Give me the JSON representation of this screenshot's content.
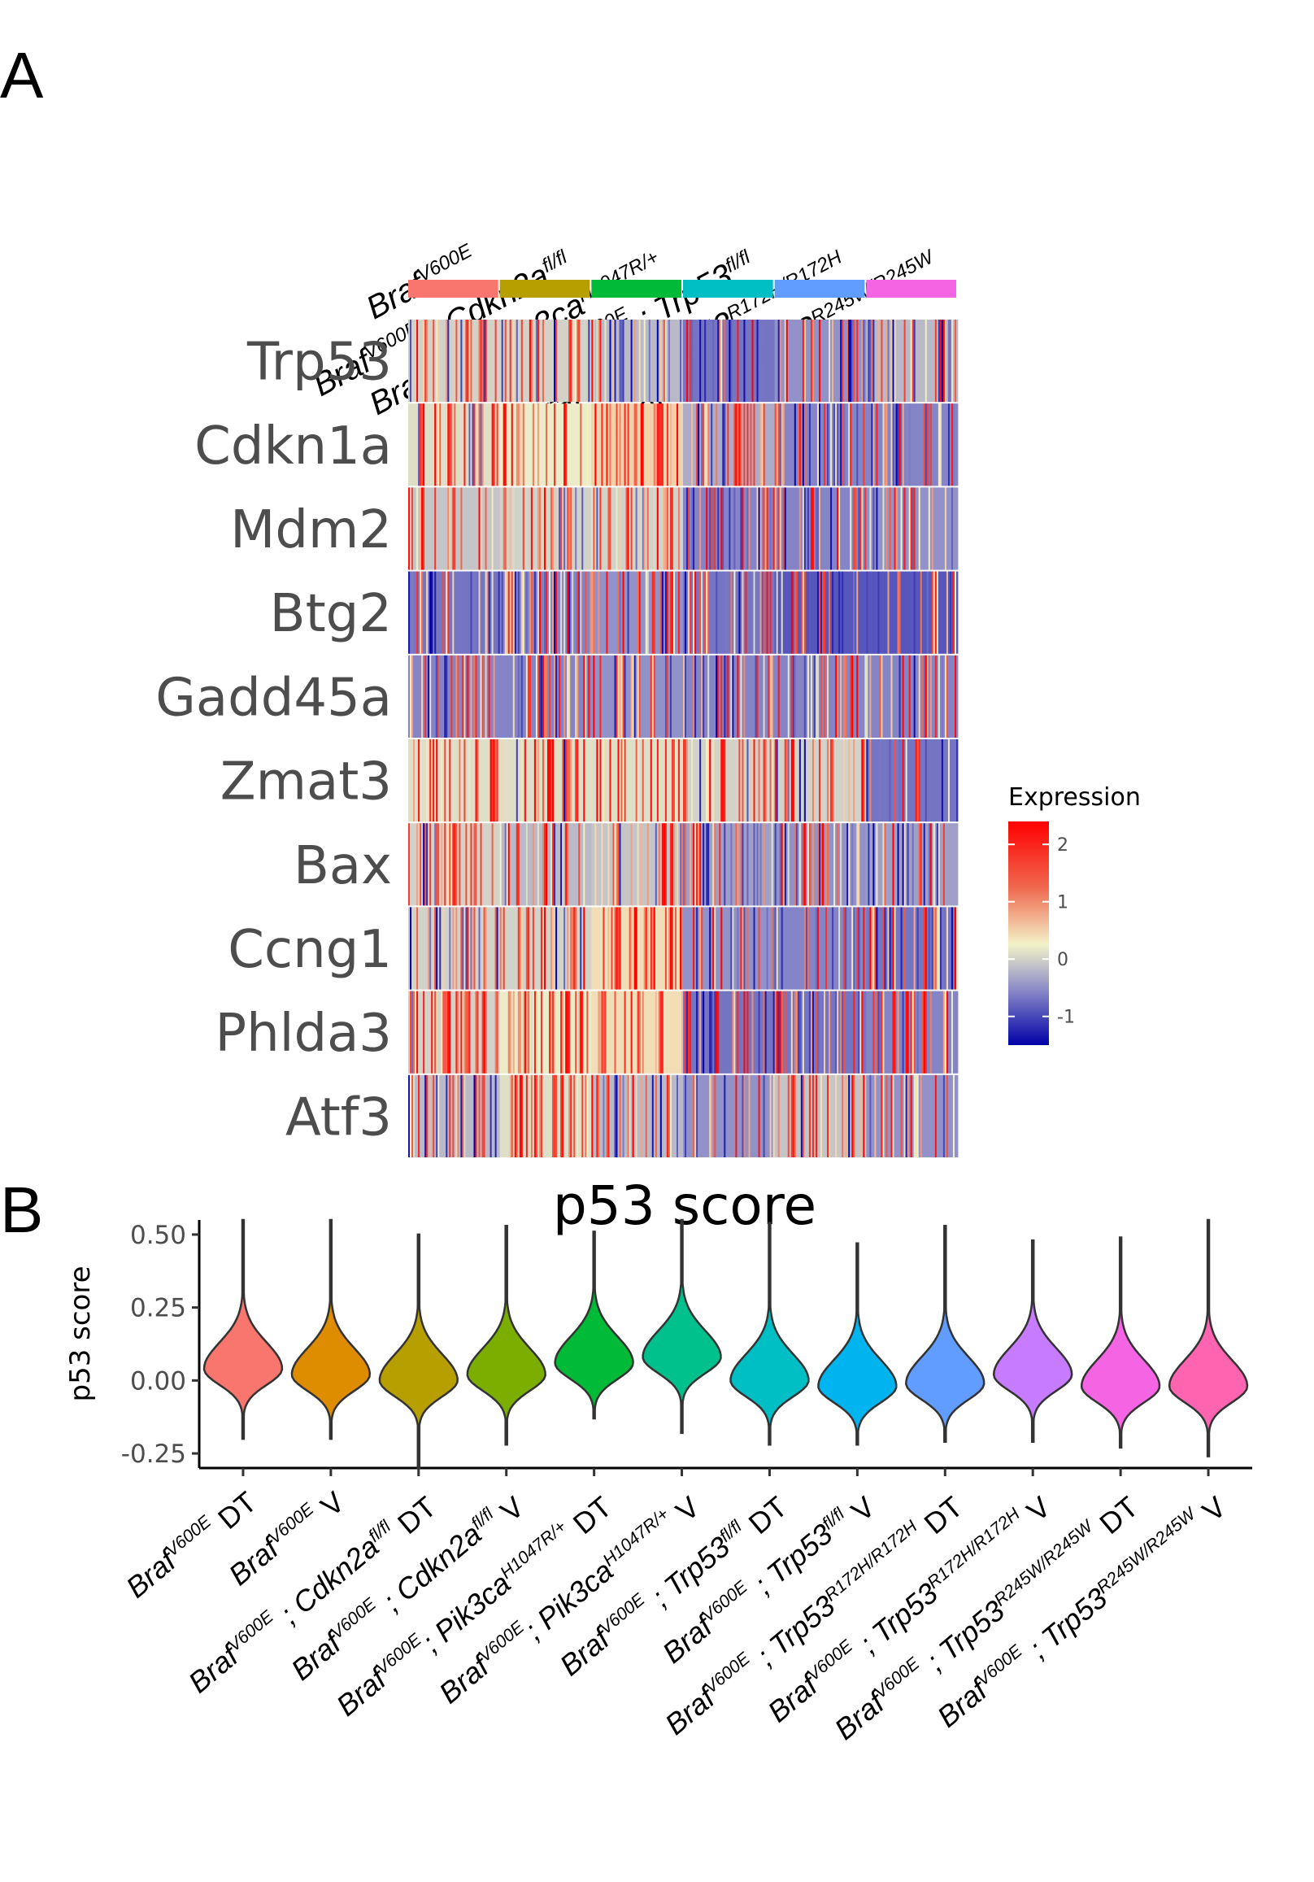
{
  "panels": {
    "a": "A",
    "b": "B"
  },
  "chart_data": [
    {
      "type": "heatmap",
      "title": "",
      "genes": [
        "Trp53",
        "Cdkn1a",
        "Mdm2",
        "Btg2",
        "Gadd45a",
        "Zmat3",
        "Bax",
        "Ccng1",
        "Phlda3",
        "Atf3"
      ],
      "groups": [
        {
          "name": "Braf V600E",
          "color": "#F8766D"
        },
        {
          "name": "Braf V600E ; Cdkn2a fl/fl",
          "color": "#B79F00"
        },
        {
          "name": "Braf V600E; Pik3ca H1047R/+",
          "color": "#00BA38"
        },
        {
          "name": "Braf V600E ; Trp53 fl/fl",
          "color": "#00BFC4"
        },
        {
          "name": "Braf V600E ; Trp53 R172H/R172H",
          "color": "#619CFF"
        },
        {
          "name": "Braf V600E ; Trp53 R245W/R245W",
          "color": "#F564E3"
        }
      ],
      "group_labels": [
        {
          "base": "Braf",
          "sup1": "V600E",
          "mid": "",
          "sup2": ""
        },
        {
          "base": "Braf",
          "sup1": "V600E",
          "mid": " ; Cdkn2a",
          "sup2": "fl/fl"
        },
        {
          "base": "Braf",
          "sup1": "V600E",
          "mid": "; Pik3ca",
          "sup2": "H1047R/+"
        },
        {
          "base": "Braf",
          "sup1": "V600E",
          "mid": " ; Trp53",
          "sup2": "fl/fl"
        },
        {
          "base": "Braf",
          "sup1": "V600E",
          "mid": " ; Trp53",
          "sup2": "R172H/R172H"
        },
        {
          "base": "Braf",
          "sup1": "V600E",
          "mid": " ; Trp53",
          "sup2": "R245W/R245W"
        }
      ],
      "approx_mean_z": [
        [
          0.3,
          0.3,
          0.1,
          -0.4,
          -0.2,
          0.1
        ],
        [
          0.4,
          0.5,
          0.8,
          0.0,
          -0.3,
          -0.3
        ],
        [
          0.2,
          0.3,
          0.3,
          -0.3,
          -0.3,
          -0.2
        ],
        [
          -0.4,
          -0.3,
          -0.2,
          -0.4,
          -0.6,
          -0.6
        ],
        [
          -0.3,
          -0.3,
          -0.2,
          -0.3,
          -0.3,
          -0.3
        ],
        [
          0.4,
          0.4,
          0.4,
          0.3,
          0.3,
          -0.4
        ],
        [
          0.3,
          0.1,
          0.2,
          -0.1,
          -0.2,
          -0.1
        ],
        [
          0.3,
          0.3,
          0.7,
          -0.2,
          -0.3,
          -0.4
        ],
        [
          0.3,
          0.5,
          0.7,
          -0.4,
          -0.4,
          -0.3
        ],
        [
          0.1,
          0.4,
          0.1,
          -0.2,
          0.2,
          -0.2
        ]
      ],
      "legend": {
        "title": "Expression",
        "ticks": [
          "2",
          "1",
          "0",
          "-1"
        ],
        "range": [
          -1.5,
          2.4
        ],
        "colors": [
          "#0000A8",
          "#8C8CC8",
          "#F2F2C8",
          "#F06A50",
          "#FF0000"
        ],
        "placement": "right"
      }
    },
    {
      "type": "violin",
      "title": "p53 score",
      "ylabel": "p53 score",
      "ylim": [
        -0.3,
        0.55
      ],
      "yticks": [
        "0.50",
        "0.25",
        "0.00",
        "-0.25"
      ],
      "ytick_values": [
        0.5,
        0.25,
        0.0,
        -0.25
      ],
      "categories": [
        {
          "base": "Braf",
          "sup1": "V600E",
          "mid": "",
          "sup2": "",
          "suffix": " DT"
        },
        {
          "base": "Braf",
          "sup1": "V600E",
          "mid": "",
          "sup2": "",
          "suffix": " V"
        },
        {
          "base": "Braf",
          "sup1": "V600E",
          "mid": " ; Cdkn2a",
          "sup2": "fl/fl",
          "suffix": " DT"
        },
        {
          "base": "Braf",
          "sup1": "V600E",
          "mid": " ; Cdkn2a",
          "sup2": "fl/fl",
          "suffix": " V"
        },
        {
          "base": "Braf",
          "sup1": "V600E",
          "mid": "; Pik3ca",
          "sup2": "H1047R/+",
          "suffix": " DT"
        },
        {
          "base": "Braf",
          "sup1": "V600E",
          "mid": "; Pik3ca",
          "sup2": "H1047R/+",
          "suffix": " V"
        },
        {
          "base": "Braf",
          "sup1": "V600E",
          "mid": " ; Trp53",
          "sup2": "fl/fl",
          "suffix": " DT"
        },
        {
          "base": "Braf",
          "sup1": "V600E",
          "mid": " ; Trp53",
          "sup2": "fl/fl",
          "suffix": " V"
        },
        {
          "base": "Braf",
          "sup1": "V600E",
          "mid": " ; Trp53",
          "sup2": "R172H/R172H",
          "suffix": " DT"
        },
        {
          "base": "Braf",
          "sup1": "V600E",
          "mid": " ; Trp53",
          "sup2": "R172H/R172H",
          "suffix": " V"
        },
        {
          "base": "Braf",
          "sup1": "V600E",
          "mid": " ; Trp53",
          "sup2": "R245W/R245W",
          "suffix": " DT"
        },
        {
          "base": "Braf",
          "sup1": "V600E",
          "mid": " ; Trp53",
          "sup2": "R245W/R245W",
          "suffix": " V"
        }
      ],
      "series": [
        {
          "color": "#F8766D",
          "min": -0.2,
          "max": 0.55,
          "mode": 0.04
        },
        {
          "color": "#DE8C00",
          "min": -0.2,
          "max": 0.55,
          "mode": 0.02
        },
        {
          "color": "#B79F00",
          "min": -0.3,
          "max": 0.5,
          "mode": 0.0
        },
        {
          "color": "#7CAE00",
          "min": -0.22,
          "max": 0.53,
          "mode": 0.02
        },
        {
          "color": "#00BA38",
          "min": -0.13,
          "max": 0.51,
          "mode": 0.06
        },
        {
          "color": "#00C08B",
          "min": -0.18,
          "max": 0.55,
          "mode": 0.08
        },
        {
          "color": "#00BFC4",
          "min": -0.22,
          "max": 0.54,
          "mode": 0.0
        },
        {
          "color": "#00B4F0",
          "min": -0.22,
          "max": 0.47,
          "mode": -0.02
        },
        {
          "color": "#619CFF",
          "min": -0.21,
          "max": 0.53,
          "mode": -0.01
        },
        {
          "color": "#C77CFF",
          "min": -0.21,
          "max": 0.48,
          "mode": 0.02
        },
        {
          "color": "#F564E3",
          "min": -0.23,
          "max": 0.49,
          "mode": -0.02
        },
        {
          "color": "#FF64B0",
          "min": -0.26,
          "max": 0.55,
          "mode": -0.02
        }
      ]
    }
  ]
}
